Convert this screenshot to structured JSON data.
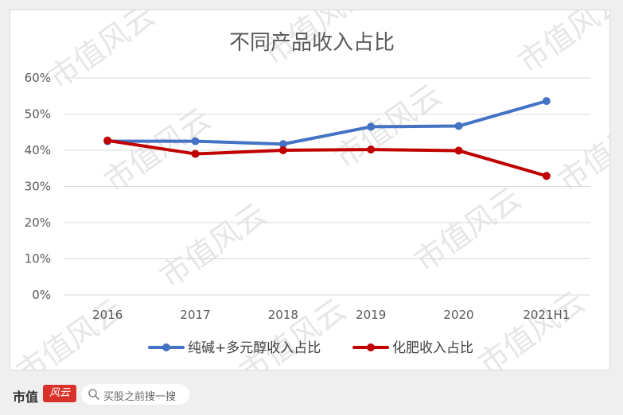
{
  "chart_data": {
    "type": "line",
    "title": "不同产品收入占比",
    "categories": [
      "2016",
      "2017",
      "2018",
      "2019",
      "2020",
      "2021H1"
    ],
    "series": [
      {
        "name": "纯碱+多元醇收入占比",
        "color": "#4472c4",
        "values": [
          42.5,
          42.5,
          41.7,
          46.5,
          46.7,
          53.6
        ]
      },
      {
        "name": "化肥收入占比",
        "color": "#c00000",
        "values": [
          42.7,
          39.0,
          40.0,
          40.2,
          39.9,
          32.9
        ]
      }
    ],
    "y_ticks": [
      "0%",
      "10%",
      "20%",
      "30%",
      "40%",
      "50%",
      "60%"
    ],
    "ylim": [
      0,
      60
    ],
    "y_unit": "%",
    "grid": true,
    "legend_position": "bottom"
  },
  "watermark": "市值风云",
  "footer": {
    "brand_name": "市值",
    "brand_logo_text": "风云",
    "search_hint": "买股之前搜一搜"
  }
}
